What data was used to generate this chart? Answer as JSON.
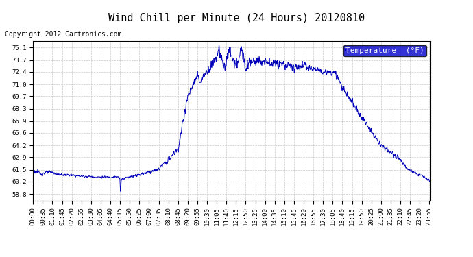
{
  "title": "Wind Chill per Minute (24 Hours) 20120810",
  "copyright_text": "Copyright 2012 Cartronics.com",
  "legend_label": "Temperature  (°F)",
  "line_color": "#0000BB",
  "legend_bg": "#0000CC",
  "legend_text_color": "#FFFFFF",
  "bg_color": "#FFFFFF",
  "plot_bg_color": "#FFFFFF",
  "grid_color": "#BBBBBB",
  "yticks": [
    58.8,
    60.2,
    61.5,
    62.9,
    64.2,
    65.6,
    66.9,
    68.3,
    69.7,
    71.0,
    72.4,
    73.7,
    75.1
  ],
  "ylim": [
    58.1,
    75.8
  ],
  "title_fontsize": 11,
  "copyright_fontsize": 7,
  "tick_fontsize": 6.5,
  "legend_fontsize": 8
}
